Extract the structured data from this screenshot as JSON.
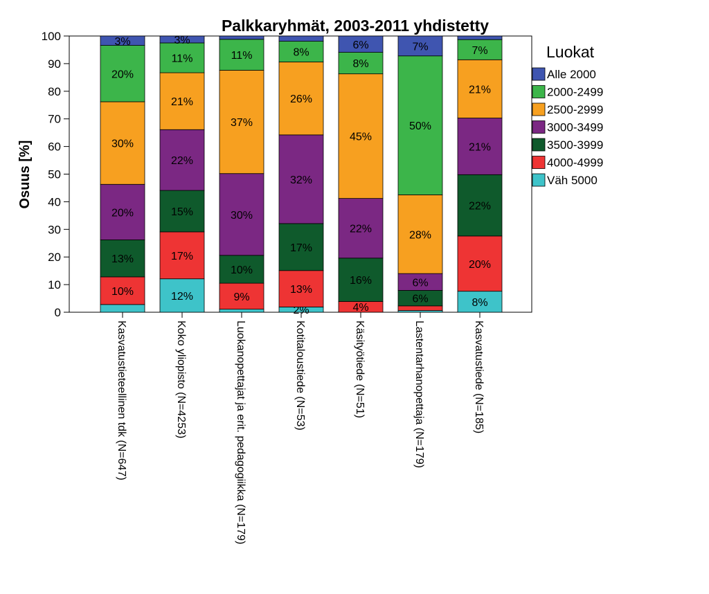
{
  "chart_data": {
    "type": "bar",
    "stacked": true,
    "title": "Palkkaryhmät, 2003-2011 yhdistetty",
    "ylabel": "Osuus [%]",
    "xlabel": "",
    "ylim": [
      0,
      100
    ],
    "yticks": [
      "0",
      "10",
      "20",
      "30",
      "40",
      "50",
      "60",
      "70",
      "80",
      "90",
      "100"
    ],
    "grid": false,
    "legend_title": "Luokat",
    "legend_position": "right",
    "categories": [
      "Kasvatustieteellinen tdk (N=647)",
      "Koko yliopisto (N=4253)",
      "Luokanopettajat ja erit. pedagogiikka (N=179)",
      "Kotitaloustiede (N=53)",
      "Käsityötiede (N=51)",
      "Lastentarhanopettaja (N=179)",
      "Kasvatustiede (N=185)"
    ],
    "series": [
      {
        "name": "Väh 5000",
        "color": "#3ec3c9",
        "values": [
          2.8,
          12.1,
          1.1,
          1.9,
          0.0,
          0.6,
          7.6
        ],
        "labels": [
          "",
          "12%",
          "",
          "2%",
          "",
          "",
          "8%"
        ]
      },
      {
        "name": "4000-4999",
        "color": "#ee3434",
        "values": [
          10.0,
          17.0,
          9.4,
          13.2,
          3.9,
          1.7,
          20.0
        ],
        "labels": [
          "10%",
          "17%",
          "9%",
          "13%",
          "4%",
          "",
          "20%"
        ]
      },
      {
        "name": "3500-3999",
        "color": "#0f5a2c",
        "values": [
          13.4,
          15.0,
          10.1,
          17.0,
          15.7,
          5.6,
          22.2
        ],
        "labels": [
          "13%",
          "15%",
          "10%",
          "17%",
          "16%",
          "6%",
          "22%"
        ]
      },
      {
        "name": "3000-3499",
        "color": "#7b2883",
        "values": [
          20.1,
          22.0,
          29.6,
          32.1,
          21.6,
          6.1,
          20.5
        ],
        "labels": [
          "20%",
          "22%",
          "30%",
          "32%",
          "22%",
          "6%",
          "21%"
        ]
      },
      {
        "name": "2500-2999",
        "color": "#f7a020",
        "values": [
          29.9,
          20.6,
          37.4,
          26.4,
          45.1,
          28.5,
          21.1
        ],
        "labels": [
          "30%",
          "21%",
          "37%",
          "26%",
          "45%",
          "28%",
          "21%"
        ]
      },
      {
        "name": "2000-2499",
        "color": "#3cb54a",
        "values": [
          20.4,
          10.8,
          11.2,
          7.5,
          7.8,
          50.3,
          7.3
        ],
        "labels": [
          "20%",
          "11%",
          "11%",
          "8%",
          "8%",
          "50%",
          "7%"
        ]
      },
      {
        "name": "Alle 2000",
        "color": "#3f55b0",
        "values": [
          3.4,
          2.5,
          1.2,
          1.9,
          5.9,
          7.2,
          1.3
        ],
        "labels": [
          "3%",
          "3%",
          "",
          "",
          "6%",
          "7%",
          ""
        ]
      }
    ]
  }
}
